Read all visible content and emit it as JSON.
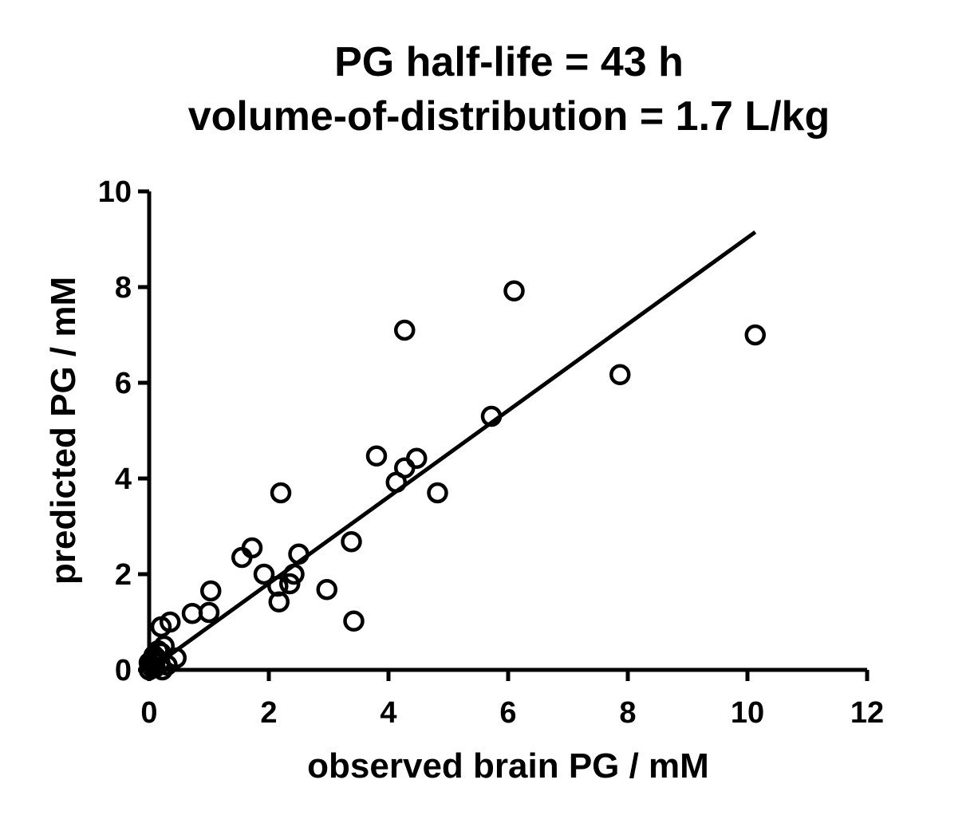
{
  "chart_data": {
    "type": "scatter",
    "title_lines": [
      "PG half-life = 43 h",
      "volume-of-distribution = 1.7 L/kg"
    ],
    "xlabel": "observed brain PG / mM",
    "ylabel": "predicted PG / mM",
    "xlim": [
      0,
      12
    ],
    "ylim": [
      0,
      10
    ],
    "xticks": [
      0,
      2,
      4,
      6,
      8,
      10,
      12
    ],
    "yticks": [
      0,
      2,
      4,
      6,
      8,
      10
    ],
    "grid": false,
    "legend": "none",
    "marker": "open-circle",
    "points": [
      [
        0.0,
        0.0
      ],
      [
        0.02,
        0.1
      ],
      [
        0.05,
        0.2
      ],
      [
        0.08,
        0.3
      ],
      [
        0.1,
        0.05
      ],
      [
        0.12,
        0.25
      ],
      [
        0.15,
        0.4
      ],
      [
        0.18,
        0.15
      ],
      [
        0.2,
        0.35
      ],
      [
        0.22,
        0.0
      ],
      [
        0.25,
        0.5
      ],
      [
        0.3,
        0.1
      ],
      [
        0.05,
        0.05
      ],
      [
        0.0,
        0.15
      ],
      [
        0.45,
        0.25
      ],
      [
        0.2,
        0.9
      ],
      [
        0.35,
        1.0
      ],
      [
        0.72,
        1.18
      ],
      [
        1.0,
        1.2
      ],
      [
        1.03,
        1.65
      ],
      [
        1.55,
        2.35
      ],
      [
        1.72,
        2.55
      ],
      [
        1.92,
        2.0
      ],
      [
        2.15,
        1.75
      ],
      [
        2.17,
        1.42
      ],
      [
        2.2,
        3.7
      ],
      [
        2.35,
        1.8
      ],
      [
        2.42,
        2.0
      ],
      [
        2.5,
        2.42
      ],
      [
        2.97,
        1.68
      ],
      [
        3.38,
        2.68
      ],
      [
        3.42,
        1.02
      ],
      [
        3.8,
        4.47
      ],
      [
        4.13,
        3.92
      ],
      [
        4.27,
        4.22
      ],
      [
        4.47,
        4.42
      ],
      [
        4.27,
        7.1
      ],
      [
        4.82,
        3.7
      ],
      [
        5.72,
        5.3
      ],
      [
        6.1,
        7.92
      ],
      [
        7.87,
        6.17
      ],
      [
        10.13,
        7.0
      ]
    ],
    "fit_line": {
      "x": [
        0,
        10.13
      ],
      "y": [
        0.0,
        9.15
      ]
    },
    "colors": {
      "ink": "#000000",
      "background": "#ffffff"
    }
  }
}
